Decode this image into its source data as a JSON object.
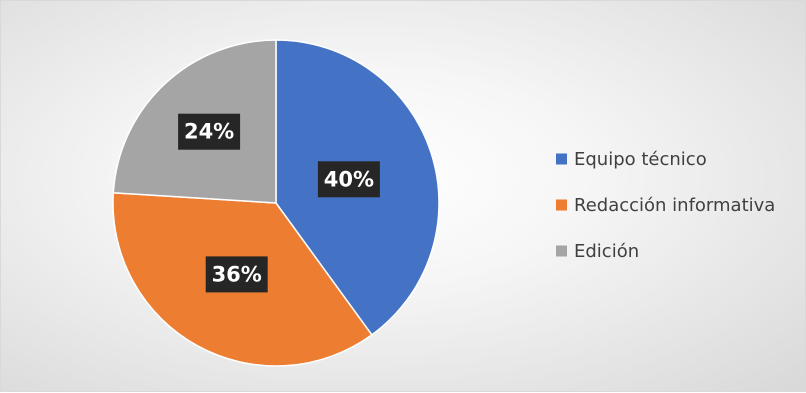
{
  "chart_data": {
    "type": "pie",
    "categories": [
      "Equipo técnico",
      "Redacción informativa",
      "Edición"
    ],
    "values": [
      40,
      36,
      24
    ],
    "labels": [
      "40%",
      "36%",
      "24%"
    ],
    "colors": [
      "#4472C4",
      "#ED7D31",
      "#A5A5A5"
    ],
    "legend": "right",
    "title": ""
  }
}
